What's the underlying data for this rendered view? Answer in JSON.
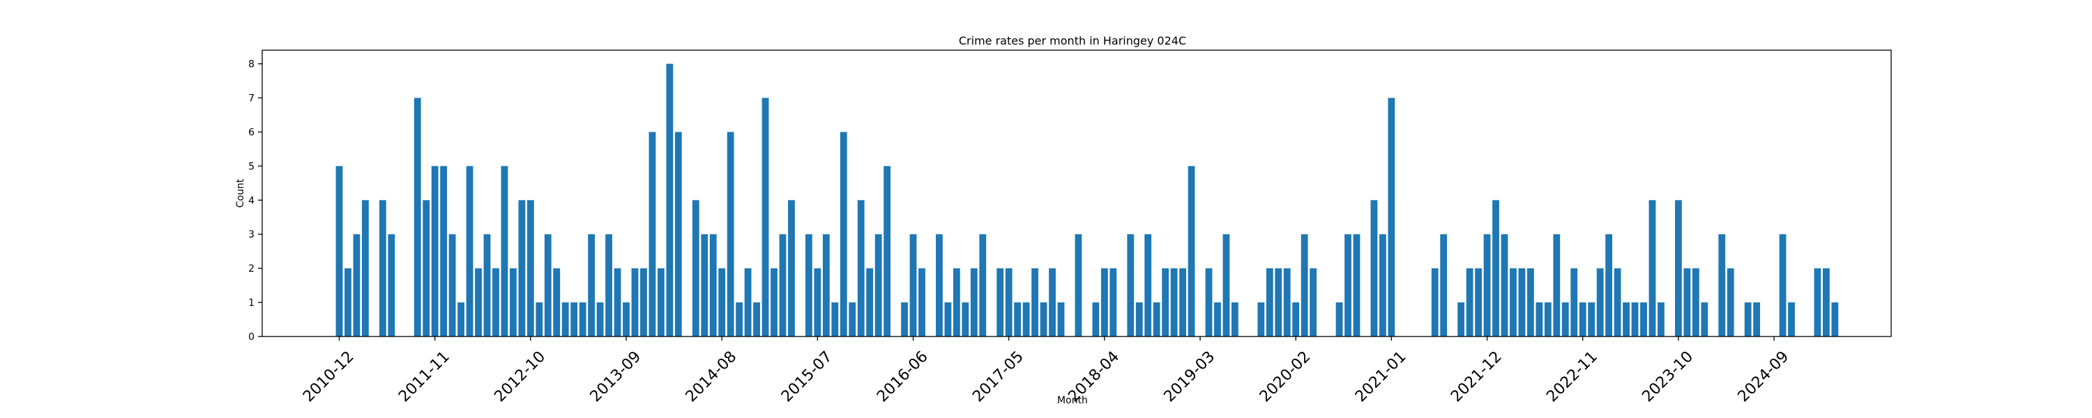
{
  "chart_data": {
    "type": "bar",
    "title": "Crime rates per month in Haringey 024C",
    "xlabel": "Month",
    "ylabel": "Count",
    "ylim": [
      0,
      8.4
    ],
    "yticks": [
      0,
      1,
      2,
      3,
      4,
      5,
      6,
      7,
      8
    ],
    "grid": false,
    "color": "#1f77b4",
    "xtick_labels": [
      "2010-12",
      "2011-11",
      "2012-10",
      "2013-09",
      "2014-08",
      "2015-07",
      "2016-06",
      "2017-05",
      "2018-04",
      "2019-03",
      "2020-02",
      "2021-01",
      "2021-12",
      "2022-11",
      "2023-10",
      "2024-09"
    ],
    "categories": [
      "2010-12",
      "2011-01",
      "2011-02",
      "2011-03",
      "2011-04",
      "2011-05",
      "2011-06",
      "2011-07",
      "2011-08",
      "2011-09",
      "2011-10",
      "2011-11",
      "2011-12",
      "2012-01",
      "2012-02",
      "2012-03",
      "2012-04",
      "2012-05",
      "2012-06",
      "2012-07",
      "2012-08",
      "2012-09",
      "2012-10",
      "2012-11",
      "2012-12",
      "2013-01",
      "2013-02",
      "2013-03",
      "2013-04",
      "2013-05",
      "2013-06",
      "2013-07",
      "2013-08",
      "2013-09",
      "2013-10",
      "2013-11",
      "2013-12",
      "2014-01",
      "2014-02",
      "2014-03",
      "2014-04",
      "2014-05",
      "2014-06",
      "2014-07",
      "2014-08",
      "2014-09",
      "2014-10",
      "2014-11",
      "2014-12",
      "2015-01",
      "2015-02",
      "2015-03",
      "2015-04",
      "2015-05",
      "2015-06",
      "2015-07",
      "2015-08",
      "2015-09",
      "2015-10",
      "2015-11",
      "2015-12",
      "2016-01",
      "2016-02",
      "2016-03",
      "2016-04",
      "2016-05",
      "2016-06",
      "2016-07",
      "2016-08",
      "2016-09",
      "2016-10",
      "2016-11",
      "2016-12",
      "2017-01",
      "2017-02",
      "2017-03",
      "2017-04",
      "2017-05",
      "2017-06",
      "2017-07",
      "2017-08",
      "2017-09",
      "2017-10",
      "2017-11",
      "2017-12",
      "2018-01",
      "2018-02",
      "2018-03",
      "2018-04",
      "2018-05",
      "2018-06",
      "2018-07",
      "2018-08",
      "2018-09",
      "2018-10",
      "2018-11",
      "2018-12",
      "2019-01",
      "2019-02",
      "2019-03",
      "2019-04",
      "2019-05",
      "2019-06",
      "2019-07",
      "2019-08",
      "2019-09",
      "2019-10",
      "2019-11",
      "2019-12",
      "2020-01",
      "2020-02",
      "2020-03",
      "2020-04",
      "2020-05",
      "2020-06",
      "2020-07",
      "2020-08",
      "2020-09",
      "2020-10",
      "2020-11",
      "2020-12",
      "2021-01",
      "2021-02",
      "2021-03",
      "2021-04",
      "2021-05",
      "2021-06",
      "2021-07",
      "2021-08",
      "2021-09",
      "2021-10",
      "2021-11",
      "2021-12",
      "2022-01",
      "2022-02",
      "2022-03",
      "2022-04",
      "2022-05",
      "2022-06",
      "2022-07",
      "2022-08",
      "2022-09",
      "2022-10",
      "2022-11",
      "2022-12",
      "2023-01",
      "2023-02",
      "2023-03",
      "2023-04",
      "2023-05",
      "2023-06",
      "2023-07",
      "2023-08",
      "2023-09",
      "2023-10",
      "2023-11",
      "2023-12",
      "2024-01",
      "2024-02",
      "2024-03",
      "2024-04",
      "2024-05",
      "2024-06",
      "2024-07",
      "2024-08",
      "2024-09",
      "2024-10",
      "2024-11",
      "2024-12",
      "2025-01",
      "2025-02",
      "2025-03",
      "2025-04",
      "2025-05",
      "2025-06",
      "2025-07",
      "2025-08",
      "2025-09",
      "2025-10",
      "2025-11",
      "2025-12"
    ],
    "values": [
      5,
      2,
      3,
      4,
      0,
      4,
      3,
      0,
      0,
      7,
      4,
      5,
      5,
      3,
      1,
      5,
      2,
      3,
      2,
      5,
      2,
      4,
      4,
      1,
      3,
      2,
      1,
      1,
      1,
      3,
      1,
      3,
      2,
      1,
      2,
      2,
      6,
      2,
      8,
      6,
      0,
      4,
      3,
      3,
      2,
      6,
      1,
      2,
      1,
      7,
      2,
      3,
      4,
      0,
      3,
      2,
      3,
      1,
      6,
      1,
      4,
      2,
      3,
      5,
      0,
      1,
      3,
      2,
      0,
      3,
      1,
      2,
      1,
      2,
      3,
      0,
      2,
      2,
      1,
      1,
      2,
      1,
      2,
      1,
      0,
      3,
      0,
      1,
      2,
      2,
      0,
      3,
      1,
      3,
      1,
      2,
      2,
      2,
      5,
      0,
      2,
      1,
      3,
      1,
      0,
      0,
      1,
      2,
      2,
      2,
      1,
      3,
      2,
      0,
      0,
      1,
      3,
      3,
      0,
      4,
      3,
      7,
      0,
      0,
      0,
      0,
      2,
      3,
      0,
      1,
      2,
      2,
      3,
      4,
      3,
      2,
      2,
      2,
      1,
      1,
      3,
      1,
      2,
      1,
      1,
      2,
      3,
      2,
      1,
      1,
      1,
      4,
      1,
      0,
      4,
      2,
      2,
      1,
      0,
      3,
      2,
      0,
      1,
      1,
      0,
      0,
      3,
      1,
      0,
      0,
      2,
      2,
      1,
      0,
      0,
      0,
      0,
      0,
      0,
      0,
      0
    ]
  }
}
